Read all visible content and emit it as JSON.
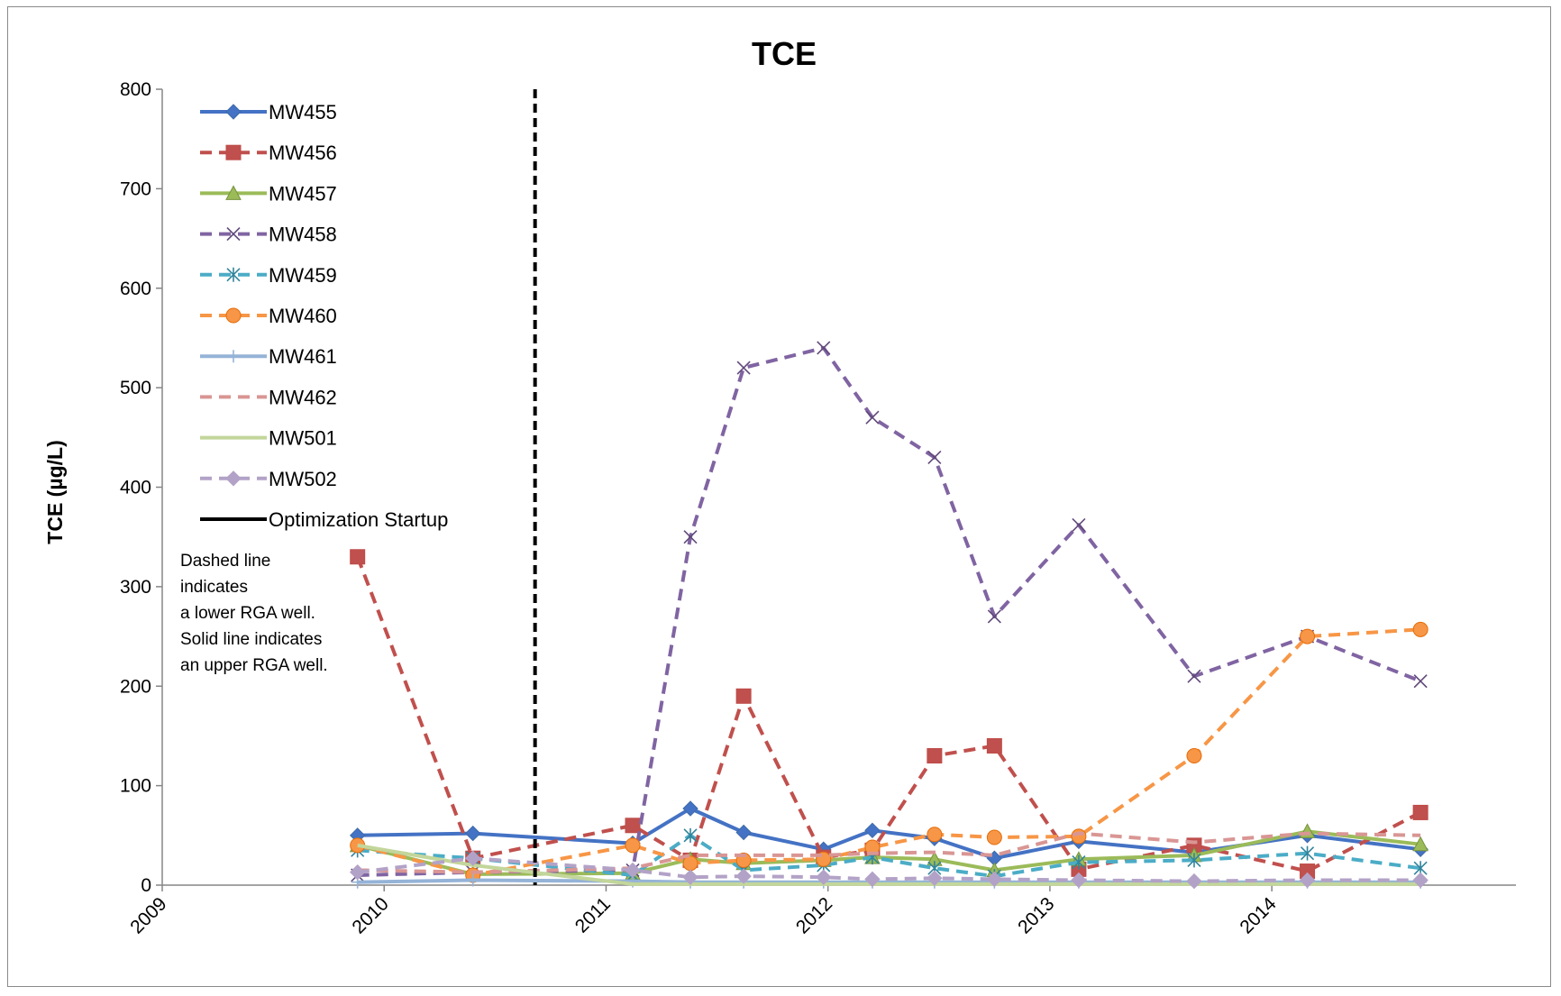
{
  "chart_data": {
    "type": "line",
    "title": "TCE",
    "xlabel": "",
    "ylabel": "TCE (µg/L)",
    "xlim": [
      2009,
      2015.1
    ],
    "ylim": [
      0,
      800
    ],
    "x_ticks": [
      "2009",
      "2010",
      "2011",
      "2012",
      "2013",
      "2014"
    ],
    "y_ticks": [
      "0",
      "100",
      "200",
      "300",
      "400",
      "500",
      "600",
      "700",
      "800"
    ],
    "grid": false,
    "legend_position": "top-left",
    "annotation": [
      "Dashed line",
      "indicates",
      "a lower RGA well.",
      "Solid line indicates",
      "an upper RGA well."
    ],
    "vertical_line": {
      "name": "Optimization Startup",
      "x": 2010.68,
      "color": "#000000",
      "dash": true
    },
    "series": [
      {
        "name": "MW455",
        "color": "#4472C4",
        "stroke": "#3F6CA8",
        "dash": false,
        "marker": "diamond",
        "x": [
          2009.88,
          2010.4,
          2011.12,
          2011.38,
          2011.62,
          2011.98,
          2012.2,
          2012.48,
          2012.75,
          2013.13,
          2013.65,
          2014.16,
          2014.67
        ],
        "y": [
          50,
          52,
          42,
          77,
          53,
          36,
          55,
          47,
          27,
          44,
          33,
          50,
          36
        ]
      },
      {
        "name": "MW456",
        "color": "#C0504D",
        "stroke": "#BE4B48",
        "dash": true,
        "marker": "square",
        "x": [
          2009.88,
          2010.4,
          2011.12,
          2011.38,
          2011.62,
          2011.98,
          2012.2,
          2012.48,
          2012.75,
          2013.13,
          2013.65,
          2014.16,
          2014.67
        ],
        "y": [
          330,
          27,
          60,
          25,
          190,
          28,
          35,
          130,
          140,
          16,
          40,
          14,
          73
        ]
      },
      {
        "name": "MW457",
        "color": "#9BBB59",
        "stroke": "#77933C",
        "dash": false,
        "marker": "triangle",
        "x": [
          2009.88,
          2010.4,
          2011.12,
          2011.38,
          2011.62,
          2011.98,
          2012.2,
          2012.48,
          2012.75,
          2013.13,
          2013.65,
          2014.16,
          2014.67
        ],
        "y": [
          40,
          11,
          12,
          26,
          22,
          25,
          28,
          26,
          15,
          26,
          30,
          54,
          41
        ]
      },
      {
        "name": "MW458",
        "color": "#8064A2",
        "stroke": "#60497A",
        "dash": true,
        "marker": "x",
        "x": [
          2009.88,
          2010.4,
          2011.12,
          2011.38,
          2011.62,
          2011.98,
          2012.2,
          2012.48,
          2012.75,
          2013.13,
          2013.65,
          2014.16,
          2014.67
        ],
        "y": [
          10,
          13,
          15,
          350,
          520,
          540,
          470,
          430,
          270,
          362,
          210,
          250,
          205
        ]
      },
      {
        "name": "MW459",
        "color": "#4BACC6",
        "stroke": "#31859C",
        "dash": true,
        "marker": "star",
        "x": [
          2009.88,
          2010.4,
          2011.12,
          2011.38,
          2011.62,
          2011.98,
          2012.2,
          2012.48,
          2012.75,
          2013.13,
          2013.65,
          2014.16,
          2014.67
        ],
        "y": [
          35,
          27,
          10,
          50,
          15,
          20,
          28,
          17,
          9,
          23,
          25,
          32,
          17
        ]
      },
      {
        "name": "MW460",
        "color": "#F79646",
        "stroke": "#E46C0A",
        "dash": true,
        "marker": "circle",
        "x": [
          2009.88,
          2010.4,
          2011.12,
          2011.38,
          2011.62,
          2011.98,
          2012.2,
          2012.48,
          2012.75,
          2013.13,
          2013.65,
          2014.16,
          2014.67
        ],
        "y": [
          40,
          10,
          40,
          22,
          25,
          26,
          38,
          51,
          48,
          49,
          130,
          250,
          257
        ]
      },
      {
        "name": "MW461",
        "color": "#95B3D7",
        "stroke": "#95B3D7",
        "dash": false,
        "marker": "plus",
        "x": [
          2009.88,
          2010.4,
          2011.12,
          2011.38,
          2011.62,
          2011.98,
          2012.2,
          2012.48,
          2012.75,
          2013.13,
          2013.65,
          2014.16,
          2014.67
        ],
        "y": [
          3,
          5,
          4,
          3,
          3,
          3,
          3,
          3,
          3,
          3,
          3,
          3,
          3
        ]
      },
      {
        "name": "MW462",
        "color": "#D99694",
        "stroke": "#D99694",
        "dash": true,
        "marker": "none",
        "x": [
          2009.88,
          2010.4,
          2011.12,
          2011.38,
          2011.62,
          2011.98,
          2012.2,
          2012.48,
          2012.75,
          2013.13,
          2013.65,
          2014.16,
          2014.67
        ],
        "y": [
          15,
          13,
          17,
          30,
          30,
          30,
          32,
          33,
          30,
          52,
          43,
          52,
          50
        ]
      },
      {
        "name": "MW501",
        "color": "#C3D69B",
        "stroke": "#C3D69B",
        "dash": false,
        "marker": "none",
        "x": [
          2009.88,
          2010.4,
          2011.12,
          2011.38,
          2011.62,
          2011.98,
          2012.2,
          2012.48,
          2012.75,
          2013.13,
          2013.65,
          2014.16,
          2014.67
        ],
        "y": [
          40,
          20,
          1,
          1,
          1,
          1,
          1,
          1,
          1,
          1,
          1,
          1,
          1
        ]
      },
      {
        "name": "MW502",
        "color": "#B3A2C7",
        "stroke": "#B3A2C7",
        "dash": true,
        "marker": "diamond",
        "x": [
          2009.88,
          2010.4,
          2011.12,
          2011.38,
          2011.62,
          2011.98,
          2012.2,
          2012.48,
          2012.75,
          2013.13,
          2013.65,
          2014.16,
          2014.67
        ],
        "y": [
          13,
          27,
          15,
          8,
          9,
          8,
          6,
          7,
          6,
          5,
          4,
          5,
          5
        ]
      }
    ]
  }
}
